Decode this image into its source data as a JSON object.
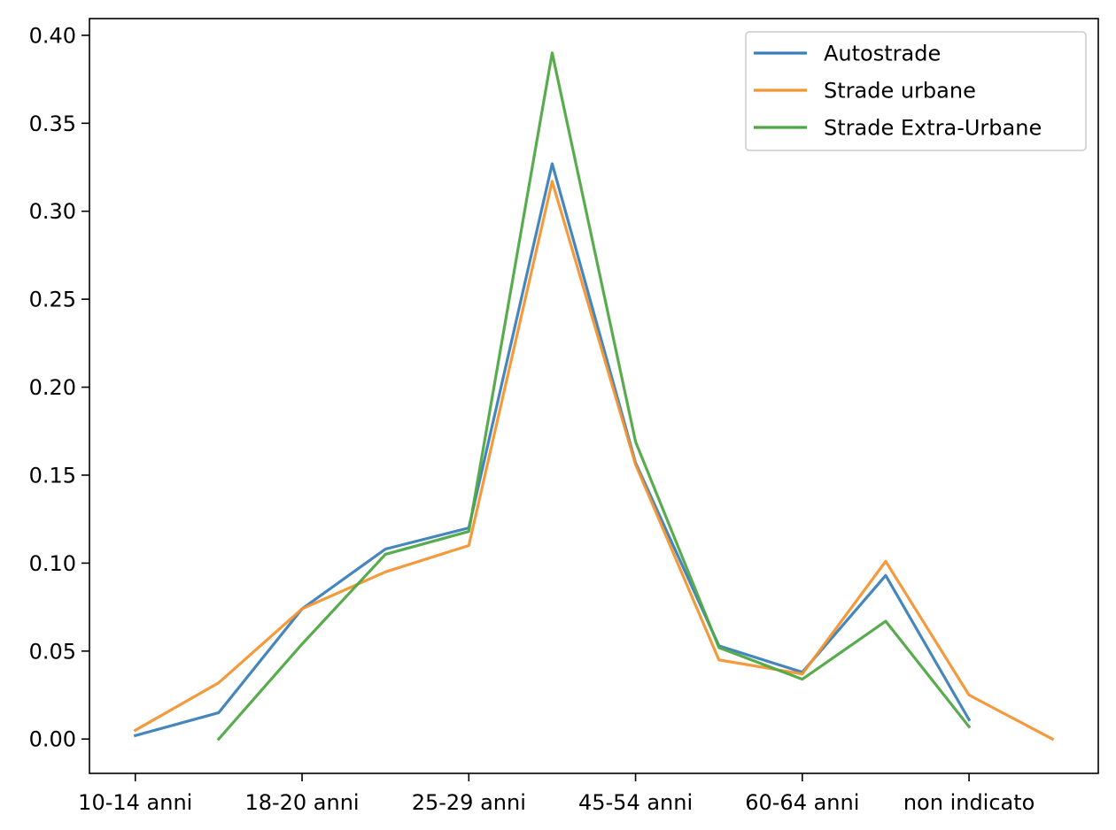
{
  "chart_data": {
    "type": "line",
    "title": "",
    "xlabel": "",
    "ylabel": "",
    "x_tick_labels": [
      "10-14 anni",
      "18-20 anni",
      "25-29 anni",
      "45-54 anni",
      "60-64 anni",
      "non indicato"
    ],
    "x_tick_positions": [
      0,
      2,
      4,
      6,
      8,
      10
    ],
    "xlim": [
      -0.55,
      11.55
    ],
    "ylim": [
      -0.0195,
      0.4095
    ],
    "y_ticks": [
      0.0,
      0.05,
      0.1,
      0.15,
      0.2,
      0.25,
      0.3,
      0.35,
      0.4
    ],
    "y_tick_labels": [
      "0.00",
      "0.05",
      "0.10",
      "0.15",
      "0.20",
      "0.25",
      "0.30",
      "0.35",
      "0.40"
    ],
    "grid": false,
    "legend_position": "top-right",
    "series": [
      {
        "name": "Autostrade",
        "color": "#3b7fb8",
        "x": [
          0,
          1,
          2,
          3,
          4,
          5,
          6,
          7,
          8,
          9,
          10
        ],
        "values": [
          0.002,
          0.015,
          0.074,
          0.108,
          0.12,
          0.327,
          0.157,
          0.053,
          0.038,
          0.093,
          0.011
        ]
      },
      {
        "name": "Strade urbane",
        "color": "#f39533",
        "x": [
          0,
          1,
          2,
          3,
          4,
          5,
          6,
          7,
          8,
          9,
          10,
          11
        ],
        "values": [
          0.005,
          0.032,
          0.074,
          0.095,
          0.11,
          0.317,
          0.156,
          0.045,
          0.037,
          0.101,
          0.025,
          0.0
        ]
      },
      {
        "name": "Strade Extra-Urbane",
        "color": "#4fa845",
        "x": [
          1,
          2,
          3,
          4,
          5,
          6,
          7,
          8,
          9,
          10
        ],
        "values": [
          0.0,
          0.054,
          0.105,
          0.118,
          0.39,
          0.169,
          0.052,
          0.034,
          0.067,
          0.007
        ]
      }
    ]
  }
}
